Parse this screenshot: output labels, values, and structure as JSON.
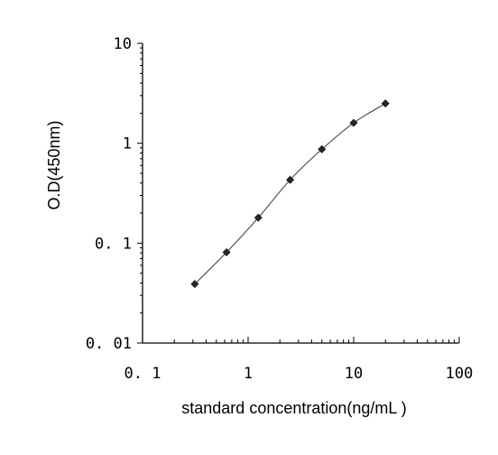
{
  "chart_data": {
    "type": "scatter",
    "xscale": "log",
    "yscale": "log",
    "xlim": [
      0.1,
      100
    ],
    "ylim": [
      0.01,
      10
    ],
    "xlabel": "standard concentration(ng/mL )",
    "ylabel": "O.D(450nm)",
    "xticks": [
      0.1,
      1,
      10,
      100
    ],
    "yticks": [
      0.01,
      0.1,
      1,
      10
    ],
    "xtick_labels": [
      "0. 1",
      "1",
      "10",
      "100"
    ],
    "ytick_labels": [
      "0. 01",
      "0. 1",
      "1",
      "10"
    ],
    "grid": false,
    "series": [
      {
        "x": [
          0.3125,
          0.625,
          1.25,
          2.5,
          5,
          10,
          20
        ],
        "y": [
          0.039,
          0.081,
          0.18,
          0.43,
          0.87,
          1.6,
          2.5
        ]
      }
    ],
    "style": {
      "point_color": "#1f2a33",
      "line_color": "#555555"
    }
  }
}
